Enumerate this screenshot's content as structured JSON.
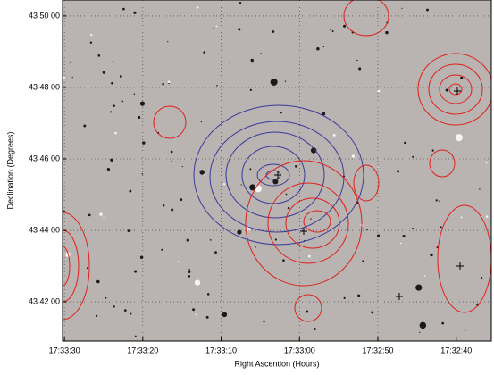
{
  "chart_data": {
    "type": "image",
    "x_label": "Right Ascention (Hours)",
    "y_label": "Declination (Degrees)",
    "xlim": [
      17.5584,
      17.5432
    ],
    "ylim": [
      43.6817,
      43.8408
    ],
    "xticks": [
      {
        "value": 17.558333,
        "label": "17:33:30"
      },
      {
        "value": 17.555556,
        "label": "17:33:20"
      },
      {
        "value": 17.552778,
        "label": "17:33:10"
      },
      {
        "value": 17.55,
        "label": "17:33:00"
      },
      {
        "value": 17.547222,
        "label": "17:32:50"
      },
      {
        "value": 17.544444,
        "label": "17:32:40"
      }
    ],
    "yticks": [
      {
        "value": 43.833333,
        "label": "43 50 00"
      },
      {
        "value": 43.8,
        "label": "43 48 00"
      },
      {
        "value": 43.766667,
        "label": "43 46 00"
      },
      {
        "value": 43.733333,
        "label": "43 44 00"
      },
      {
        "value": 43.7,
        "label": "43 42 00"
      }
    ],
    "grid": true
  }
}
